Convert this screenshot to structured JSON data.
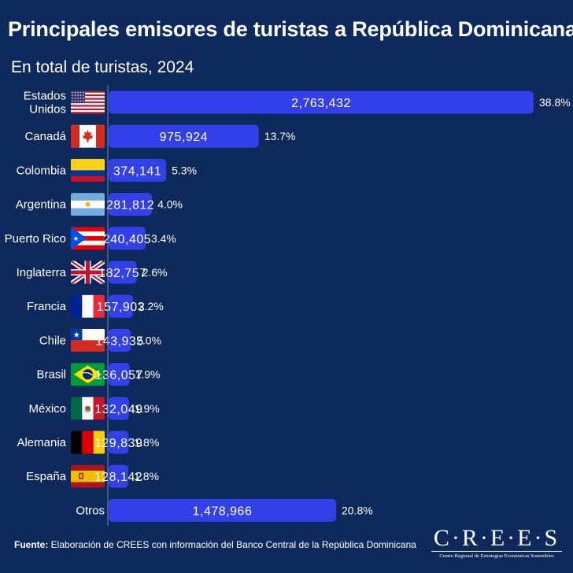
{
  "header": {
    "title": "Principales emisores de turistas a República Dominicana",
    "subtitle": "En total de turistas, 2024"
  },
  "chart_data": {
    "type": "bar",
    "orientation": "horizontal",
    "title": "Principales emisores de turistas a República Dominicana",
    "subtitle": "En total de turistas, 2024",
    "categories": [
      [
        "Estados",
        "Unidos"
      ],
      [
        "Canadá"
      ],
      [
        "Colombia"
      ],
      [
        "Argentina"
      ],
      [
        "Puerto Rico"
      ],
      [
        "Inglaterra"
      ],
      [
        "Francia"
      ],
      [
        "Chile"
      ],
      [
        "Brasil"
      ],
      [
        "México"
      ],
      [
        "Alemania"
      ],
      [
        "España"
      ],
      [
        "Otros"
      ]
    ],
    "values": [
      2763432,
      975924,
      374141,
      281812,
      240405,
      182757,
      157903,
      143935,
      136057,
      132049,
      129839,
      128142,
      1478966
    ],
    "value_labels": [
      "2,763,432",
      "975,924",
      "374,141",
      "281,812",
      "240,405",
      "182,757",
      "157,903",
      "143,935",
      "136,057",
      "132,049",
      "129,839",
      "128,142",
      "1,478,966"
    ],
    "percent_labels": [
      "38.8%",
      "13.7%",
      "5.3%",
      "4.0%",
      "3.4%",
      "2.6%",
      "2.2%",
      "2.0%",
      "1.9%",
      "1.9%",
      "1.8%",
      "1.8%",
      "20.8%"
    ],
    "flags": [
      "us-flag-icon",
      "canada-flag-icon",
      "colombia-flag-icon",
      "argentina-flag-icon",
      "puerto-rico-flag-icon",
      "uk-flag-icon",
      "france-flag-icon",
      "chile-flag-icon",
      "brazil-flag-icon",
      "mexico-flag-icon",
      "germany-flag-icon",
      "spain-flag-icon",
      ""
    ],
    "xlim": [
      0,
      2763432
    ],
    "bar_color": "#3340ea",
    "xlabel": "",
    "ylabel": ""
  },
  "footer": {
    "source_label": "Fuente:",
    "source_text": " Elaboración de CREES con información del Banco Central de la República Dominicana",
    "logo_name": "C·R·E·E·S",
    "logo_tagline": "Centro Regional de Estrategias Económicas Sostenibles"
  },
  "colors": {
    "background": "#0e2a5c",
    "bar": "#3340ea",
    "text": "#ffffff"
  }
}
